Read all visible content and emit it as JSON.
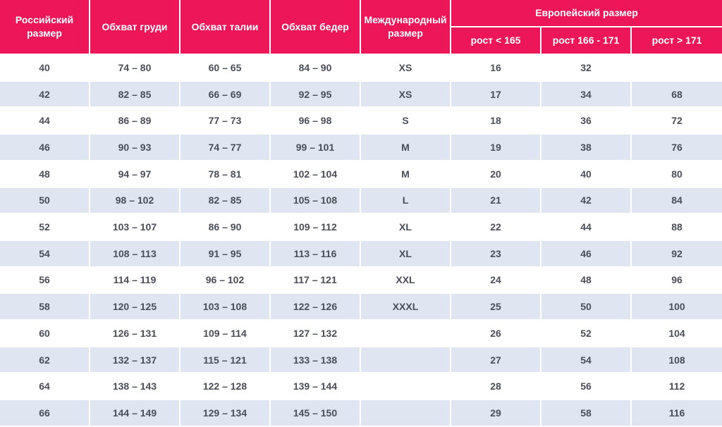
{
  "chart_data": {
    "type": "table",
    "header": {
      "russian_size": "Российский размер",
      "bust": "Обхват груди",
      "waist": "Обхват талии",
      "hips": "Обхват бедер",
      "international_size": "Международный размер",
      "european_size_group": "Европейский размер",
      "height_lt_165": "рост < 165",
      "height_166_171": "рост 166 - 171",
      "height_gt_171": "рост > 171"
    },
    "rows": [
      [
        "40",
        "74 – 80",
        "60 – 65",
        "84 – 90",
        "XS",
        "16",
        "32",
        ""
      ],
      [
        "42",
        "82 – 85",
        "66 – 69",
        "92 – 95",
        "XS",
        "17",
        "34",
        "68"
      ],
      [
        "44",
        "86 – 89",
        "77 – 73",
        "96 – 98",
        "S",
        "18",
        "36",
        "72"
      ],
      [
        "46",
        "90 – 93",
        "74 – 77",
        "99 – 101",
        "M",
        "19",
        "38",
        "76"
      ],
      [
        "48",
        "94 – 97",
        "78 – 81",
        "102 – 104",
        "M",
        "20",
        "40",
        "80"
      ],
      [
        "50",
        "98 – 102",
        "82 – 85",
        "105 – 108",
        "L",
        "21",
        "42",
        "84"
      ],
      [
        "52",
        "103 – 107",
        "86 – 90",
        "109 – 112",
        "XL",
        "22",
        "44",
        "88"
      ],
      [
        "54",
        "108 – 113",
        "91 – 95",
        "113 – 116",
        "XL",
        "23",
        "46",
        "92"
      ],
      [
        "56",
        "114 – 119",
        "96 – 102",
        "117 – 121",
        "XXL",
        "24",
        "48",
        "96"
      ],
      [
        "58",
        "120 – 125",
        "103 – 108",
        "122 – 126",
        "XXXL",
        "25",
        "50",
        "100"
      ],
      [
        "60",
        "126 – 131",
        "109 – 114",
        "127 – 132",
        "",
        "26",
        "52",
        "104"
      ],
      [
        "62",
        "132 – 137",
        "115 – 121",
        "133 – 138",
        "",
        "27",
        "54",
        "108"
      ],
      [
        "64",
        "138 – 143",
        "122 – 128",
        "139 – 144",
        "",
        "28",
        "56",
        "112"
      ],
      [
        "66",
        "144 – 149",
        "129 – 134",
        "145 – 150",
        "",
        "29",
        "58",
        "116"
      ]
    ]
  },
  "colors": {
    "header_bg": "#ED1659",
    "header_text": "#FFFFFF",
    "row_bg": "#FFFFFF",
    "row_alt_bg": "#DFE6F2",
    "cell_text": "#494E58",
    "divider": "#FFFFFF"
  }
}
